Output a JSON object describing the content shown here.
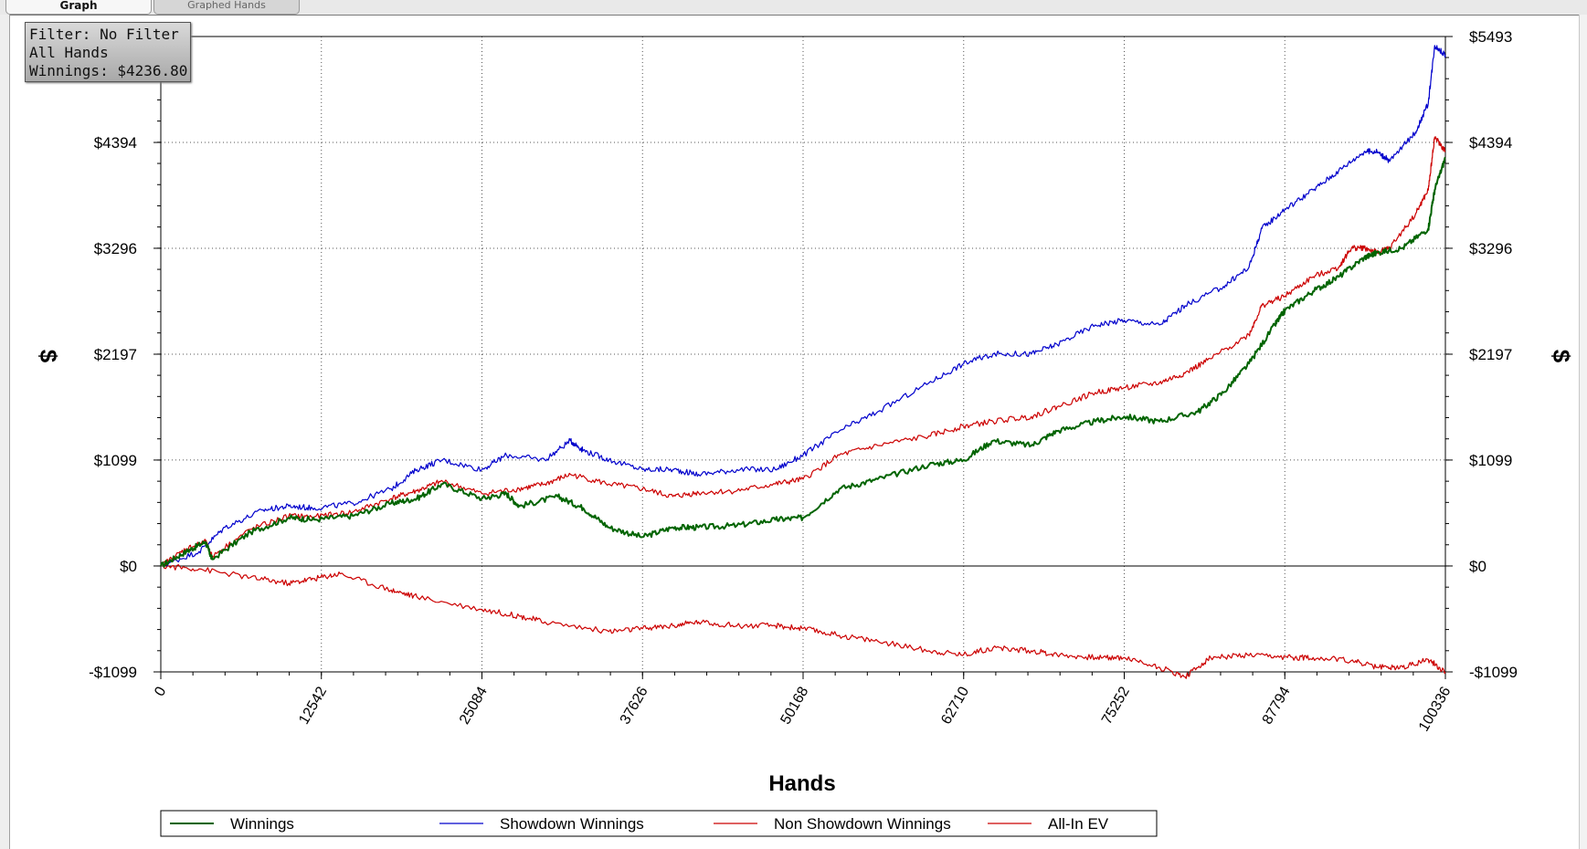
{
  "tabs": [
    {
      "label": "Graph",
      "active": true
    },
    {
      "label": "Graphed Hands",
      "active": false
    }
  ],
  "info_box": {
    "filter": "Filter: No Filter",
    "hands": "All Hands",
    "winnings": "Winnings: $4236.80"
  },
  "chart_data": {
    "type": "line",
    "xlabel": "Hands",
    "ylabel": "$",
    "xlim": [
      0,
      100336
    ],
    "ylim": [
      -1099,
      5493
    ],
    "x_ticks": [
      0,
      12542,
      25084,
      37626,
      50168,
      62710,
      75252,
      87794,
      100336
    ],
    "x_tick_labels": [
      "0",
      "12542",
      "25084",
      "37626",
      "50168",
      "62710",
      "75252",
      "87794",
      "100336"
    ],
    "y_ticks": [
      -1099,
      0,
      1099,
      2197,
      3296,
      4394
    ],
    "y_tick_labels": [
      "-$1099",
      "$0",
      "$1099",
      "$2197",
      "$3296",
      "$4394"
    ],
    "right_y_tick_labels": [
      "-$1099",
      "$0",
      "$1099",
      "$2197",
      "$3296",
      "$4394",
      "$5493"
    ],
    "grid": true,
    "legend_position": "bottom",
    "series": [
      {
        "name": "Winnings",
        "color": "#006400",
        "x": [
          0,
          2000,
          3500,
          4000,
          7000,
          10000,
          12000,
          15000,
          18000,
          20000,
          22000,
          25084,
          27000,
          28000,
          31000,
          33000,
          35000,
          37626,
          40000,
          42000,
          45000,
          48000,
          50168,
          53000,
          56000,
          60000,
          62710,
          65000,
          68000,
          70000,
          73000,
          75252,
          78000,
          81000,
          83000,
          85000,
          87000,
          87794,
          90000,
          92000,
          94000,
          95000,
          97000,
          99000,
          99500,
          100336
        ],
        "y": [
          0,
          150,
          250,
          70,
          350,
          500,
          480,
          520,
          650,
          700,
          850,
          700,
          750,
          620,
          720,
          600,
          400,
          300,
          400,
          400,
          420,
          480,
          500,
          800,
          900,
          1050,
          1100,
          1300,
          1250,
          1400,
          1500,
          1550,
          1500,
          1600,
          1800,
          2100,
          2500,
          2650,
          2850,
          3000,
          3200,
          3250,
          3300,
          3500,
          3900,
          4236.8
        ]
      },
      {
        "name": "Showdown Winnings",
        "color": "#0000cc",
        "x": [
          0,
          3000,
          5000,
          8000,
          10000,
          12000,
          15000,
          18000,
          20000,
          22000,
          25084,
          27000,
          30000,
          32000,
          33000,
          35000,
          37626,
          40000,
          42000,
          45000,
          48000,
          50168,
          53000,
          56000,
          60000,
          62710,
          65000,
          68000,
          70000,
          73000,
          75252,
          78000,
          80000,
          83000,
          85000,
          86000,
          87794,
          90000,
          92000,
          94000,
          95000,
          96000,
          98000,
          99000,
          99500,
          100336
        ],
        "y": [
          0,
          150,
          400,
          580,
          620,
          600,
          650,
          800,
          1000,
          1100,
          1000,
          1150,
          1100,
          1300,
          1200,
          1100,
          1000,
          1000,
          950,
          1000,
          1000,
          1150,
          1400,
          1600,
          1900,
          2100,
          2200,
          2200,
          2300,
          2500,
          2550,
          2500,
          2700,
          2900,
          3100,
          3500,
          3700,
          3900,
          4100,
          4300,
          4300,
          4200,
          4500,
          4800,
          5400,
          5300
        ]
      },
      {
        "name": "Non Showdown Winnings",
        "color": "#cc0000",
        "x": [
          0,
          2000,
          3500,
          4000,
          7000,
          10000,
          12000,
          15000,
          18000,
          20000,
          22000,
          25084,
          28000,
          30000,
          32000,
          35000,
          37626,
          40000,
          42000,
          45000,
          48000,
          50168,
          53000,
          56000,
          60000,
          62710,
          65000,
          68000,
          70000,
          73000,
          75252,
          78000,
          80000,
          82000,
          85000,
          86000,
          87794,
          90000,
          92000,
          93000,
          94000,
          95000,
          96000,
          98000,
          99000,
          99500,
          100336
        ],
        "y": [
          0,
          180,
          250,
          100,
          380,
          520,
          510,
          560,
          700,
          780,
          880,
          750,
          800,
          850,
          950,
          850,
          800,
          720,
          760,
          780,
          850,
          900,
          1150,
          1250,
          1350,
          1450,
          1500,
          1550,
          1650,
          1800,
          1850,
          1900,
          2000,
          2150,
          2400,
          2700,
          2800,
          3000,
          3100,
          3300,
          3300,
          3250,
          3300,
          3650,
          3900,
          4450,
          4300
        ]
      },
      {
        "name": "All-In EV",
        "color": "#cc0000",
        "x": [
          0,
          3000,
          7000,
          10000,
          12000,
          14000,
          18000,
          20000,
          25084,
          28000,
          30000,
          35000,
          37626,
          40000,
          42000,
          45000,
          48000,
          50168,
          53000,
          56000,
          60000,
          62710,
          65000,
          68000,
          70000,
          73000,
          75252,
          78000,
          80000,
          82000,
          85000,
          88000,
          90000,
          93000,
          95000,
          97000,
          99000,
          100336
        ],
        "y": [
          0,
          -30,
          -120,
          -180,
          -130,
          -80,
          -250,
          -320,
          -450,
          -520,
          -580,
          -680,
          -650,
          -620,
          -580,
          -620,
          -620,
          -650,
          -720,
          -780,
          -880,
          -920,
          -850,
          -880,
          -920,
          -950,
          -950,
          -1050,
          -1150,
          -950,
          -930,
          -950,
          -950,
          -980,
          -1050,
          -1050,
          -970,
          -1099
        ]
      }
    ]
  }
}
